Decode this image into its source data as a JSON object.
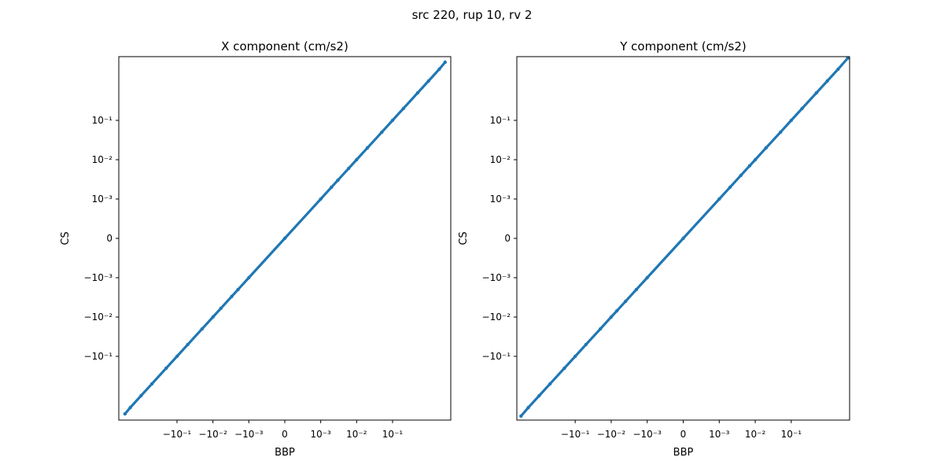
{
  "figure": {
    "suptitle": "src 220, rup 10, rv 2"
  },
  "style": {
    "point_color": "#1f77b4",
    "axes_color": "#000000",
    "background": "#ffffff"
  },
  "chart_data": [
    {
      "type": "scatter",
      "title": "X component (cm/s2)",
      "xlabel": "BBP",
      "ylabel": "CS",
      "xscale": "symlog",
      "yscale": "symlog",
      "grid": false,
      "x_tick_labels": [
        "−10⁻¹",
        "−10⁻²",
        "−10⁻³",
        "0",
        "10⁻³",
        "10⁻²",
        "10⁻¹"
      ],
      "y_tick_labels": [
        "−10⁻¹",
        "−10⁻²",
        "−10⁻³",
        "0",
        "10⁻³",
        "10⁻²",
        "10⁻¹"
      ],
      "x_tick_values": [
        -0.1,
        -0.01,
        -0.001,
        0,
        0.001,
        0.01,
        0.1
      ],
      "y_tick_values": [
        -0.1,
        -0.01,
        -0.001,
        0,
        0.001,
        0.01,
        0.1
      ],
      "points": [
        [
          -0.28,
          -0.29
        ],
        [
          -0.2,
          -0.2
        ],
        [
          -0.1,
          -0.1
        ],
        [
          -0.05,
          -0.05
        ],
        [
          -0.02,
          -0.02
        ],
        [
          -0.01,
          -0.01
        ],
        [
          -0.005,
          -0.005
        ],
        [
          -0.002,
          -0.002
        ],
        [
          -0.001,
          -0.001
        ],
        [
          -0.0006,
          -0.0006
        ],
        [
          -0.0003,
          -0.0003
        ],
        [
          -0.0002,
          -0.0002
        ],
        [
          -0.0001,
          -0.0001
        ],
        [
          0,
          0
        ],
        [
          0.0001,
          0.0001
        ],
        [
          0.0002,
          0.0002
        ],
        [
          0.0003,
          0.0003
        ],
        [
          0.0006,
          0.0006
        ],
        [
          0.001,
          0.001
        ],
        [
          0.002,
          0.002
        ],
        [
          0.005,
          0.005
        ],
        [
          0.01,
          0.01
        ],
        [
          0.02,
          0.02
        ],
        [
          0.05,
          0.05
        ],
        [
          0.1,
          0.1
        ],
        [
          0.2,
          0.2
        ],
        [
          0.29,
          0.3
        ]
      ]
    },
    {
      "type": "scatter",
      "title": "Y component (cm/s2)",
      "xlabel": "BBP",
      "ylabel": "CS",
      "xscale": "symlog",
      "yscale": "symlog",
      "grid": false,
      "x_tick_labels": [
        "−10⁻¹",
        "−10⁻²",
        "−10⁻³",
        "0",
        "10⁻³",
        "10⁻²",
        "10⁻¹"
      ],
      "y_tick_labels": [
        "−10⁻¹",
        "−10⁻²",
        "−10⁻³",
        "0",
        "10⁻³",
        "10⁻²",
        "10⁻¹"
      ],
      "x_tick_values": [
        -0.1,
        -0.01,
        -0.001,
        0,
        0.001,
        0.01,
        0.1
      ],
      "y_tick_values": [
        -0.1,
        -0.01,
        -0.001,
        0,
        0.001,
        0.01,
        0.1
      ],
      "points": [
        [
          -0.32,
          -0.33
        ],
        [
          -0.2,
          -0.2
        ],
        [
          -0.1,
          -0.1
        ],
        [
          -0.05,
          -0.05
        ],
        [
          -0.02,
          -0.02
        ],
        [
          -0.01,
          -0.01
        ],
        [
          -0.005,
          -0.005
        ],
        [
          -0.002,
          -0.002
        ],
        [
          -0.001,
          -0.001
        ],
        [
          -0.0007,
          -0.0007
        ],
        [
          -0.0004,
          -0.0004
        ],
        [
          -0.0002,
          -0.0002
        ],
        [
          -0.0001,
          -0.0001
        ],
        [
          0,
          0
        ],
        [
          0.0001,
          0.0001
        ],
        [
          0.0002,
          0.0002
        ],
        [
          0.0004,
          0.0004
        ],
        [
          0.0007,
          0.0007
        ],
        [
          0.001,
          0.001
        ],
        [
          0.002,
          0.002
        ],
        [
          0.005,
          0.005
        ],
        [
          0.01,
          0.01
        ],
        [
          0.02,
          0.02
        ],
        [
          0.05,
          0.05
        ],
        [
          0.1,
          0.1
        ],
        [
          0.2,
          0.2
        ],
        [
          0.37,
          0.38
        ]
      ]
    }
  ]
}
